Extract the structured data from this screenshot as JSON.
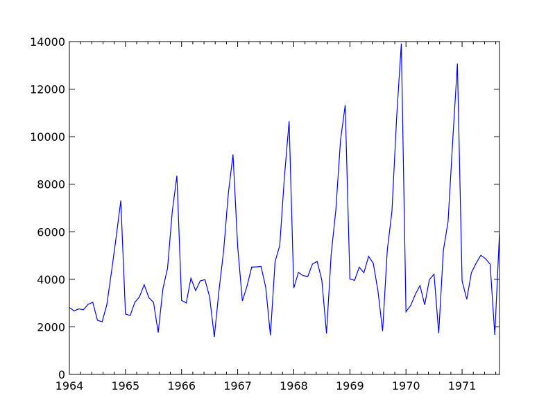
{
  "chart_data": {
    "type": "line",
    "title": "",
    "xlabel": "",
    "ylabel": "",
    "grid": false,
    "legend": "none",
    "xlim": [
      1964.0,
      1971.667
    ],
    "ylim": [
      0,
      14000
    ],
    "x_ticks": [
      1964,
      1965,
      1966,
      1967,
      1968,
      1969,
      1970,
      1971
    ],
    "x_tick_labels": [
      "1964",
      "1965",
      "1966",
      "1967",
      "1968",
      "1969",
      "1970",
      "1971"
    ],
    "y_ticks": [
      0,
      2000,
      4000,
      6000,
      8000,
      10000,
      12000,
      14000
    ],
    "y_tick_labels": [
      "0",
      "2000",
      "4000",
      "6000",
      "8000",
      "10000",
      "12000",
      "14000"
    ],
    "series": [
      {
        "color": "#0000ff",
        "x": [
          "1964-01",
          "1964-02",
          "1964-03",
          "1964-04",
          "1964-05",
          "1964-06",
          "1964-07",
          "1964-08",
          "1964-09",
          "1964-10",
          "1964-11",
          "1964-12",
          "1965-01",
          "1965-02",
          "1965-03",
          "1965-04",
          "1965-05",
          "1965-06",
          "1965-07",
          "1965-08",
          "1965-09",
          "1965-10",
          "1965-11",
          "1965-12",
          "1966-01",
          "1966-02",
          "1966-03",
          "1966-04",
          "1966-05",
          "1966-06",
          "1966-07",
          "1966-08",
          "1966-09",
          "1966-10",
          "1966-11",
          "1966-12",
          "1967-01",
          "1967-02",
          "1967-03",
          "1967-04",
          "1967-05",
          "1967-06",
          "1967-07",
          "1967-08",
          "1967-09",
          "1967-10",
          "1967-11",
          "1967-12",
          "1968-01",
          "1968-02",
          "1968-03",
          "1968-04",
          "1968-05",
          "1968-06",
          "1968-07",
          "1968-08",
          "1968-09",
          "1968-10",
          "1968-11",
          "1968-12",
          "1969-01",
          "1969-02",
          "1969-03",
          "1969-04",
          "1969-05",
          "1969-06",
          "1969-07",
          "1969-08",
          "1969-09",
          "1969-10",
          "1969-11",
          "1969-12",
          "1970-01",
          "1970-02",
          "1970-03",
          "1970-04",
          "1970-05",
          "1970-06",
          "1970-07",
          "1970-08",
          "1970-09",
          "1970-10",
          "1970-11",
          "1970-12",
          "1971-01",
          "1971-02",
          "1971-03",
          "1971-04",
          "1971-05",
          "1971-06",
          "1971-07",
          "1971-08",
          "1971-09"
        ],
        "values": [
          2815,
          2672,
          2755,
          2721,
          2946,
          3036,
          2282,
          2212,
          2922,
          4301,
          5764,
          7312,
          2541,
          2475,
          3031,
          3266,
          3776,
          3230,
          3028,
          1759,
          3595,
          4474,
          6838,
          8357,
          3113,
          3006,
          4047,
          3523,
          3937,
          3986,
          3260,
          1573,
          3528,
          5211,
          7614,
          9254,
          5375,
          3088,
          3718,
          4514,
          4520,
          4539,
          3663,
          1643,
          4739,
          5428,
          8314,
          10651,
          3633,
          4292,
          4154,
          4121,
          4647,
          4753,
          3965,
          1723,
          5048,
          6922,
          9858,
          11331,
          4016,
          3957,
          4510,
          4276,
          4968,
          4677,
          3523,
          1821,
          5222,
          6872,
          10803,
          13916,
          2639,
          2899,
          3370,
          3740,
          2927,
          3986,
          4217,
          1738,
          5221,
          6424,
          9842,
          13076,
          3934,
          3162,
          4286,
          4676,
          5010,
          4874,
          4633,
          1659,
          5951
        ]
      }
    ]
  }
}
